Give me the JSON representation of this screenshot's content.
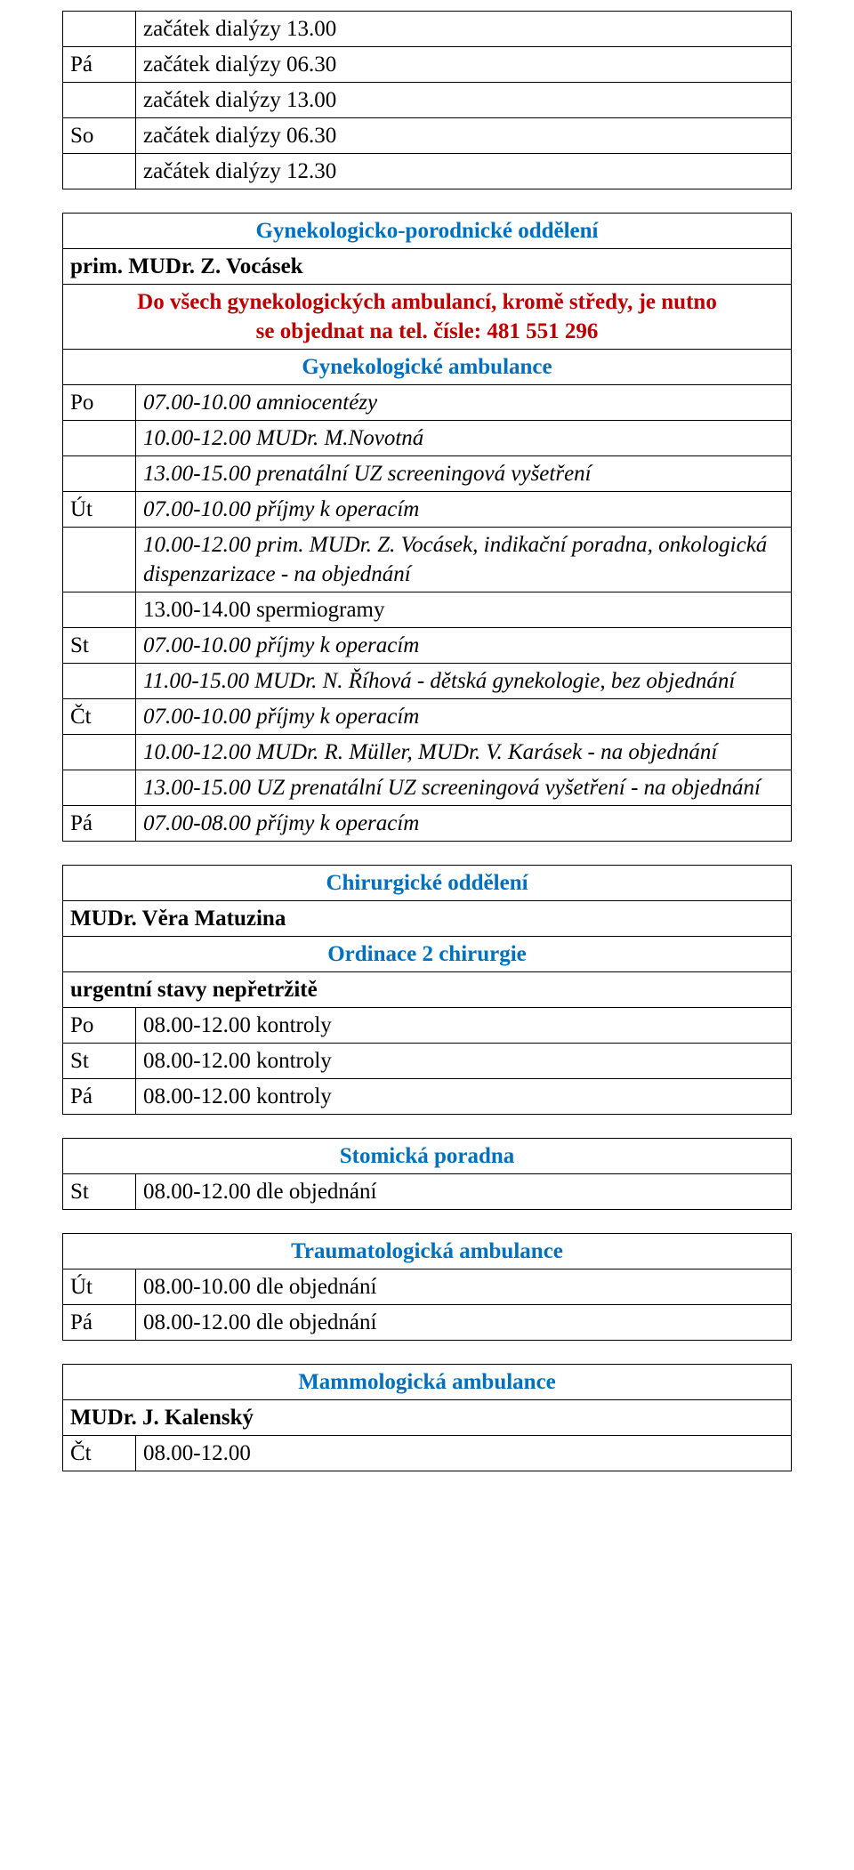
{
  "colors": {
    "heading": "#0070c0",
    "red": "#c00000",
    "text": "#000000",
    "background": "#ffffff",
    "border": "#000000"
  },
  "typography": {
    "font_family": "Times New Roman",
    "body_fontsize": 25,
    "heading_fontsize": 29
  },
  "table1": {
    "rows": [
      {
        "day": "",
        "text": "začátek dialýzy 13.00"
      },
      {
        "day": "Pá",
        "text": "začátek dialýzy 06.30"
      },
      {
        "day": "",
        "text": "začátek dialýzy 13.00"
      },
      {
        "day": "So",
        "text": "začátek dialýzy 06.30"
      },
      {
        "day": "",
        "text": "začátek dialýzy 12.30"
      }
    ]
  },
  "table2": {
    "heading": "Gynekologicko-porodnické oddělení",
    "primar": "prim. MUDr. Z. Vocásek",
    "red1": "Do všech gynekologických ambulancí, kromě středy, je nutno",
    "red2": "se objednat na tel. čísle: 481 551 296",
    "subheading": "Gynekologické ambulance",
    "rows": [
      {
        "day": "Po",
        "text": "07.00-10.00 amniocentézy",
        "italic": true
      },
      {
        "day": "",
        "text": "10.00-12.00 MUDr. M.Novotná",
        "italic": true
      },
      {
        "day": "",
        "text": "13.00-15.00 prenatální UZ screeningová vyšetření",
        "italic": true
      },
      {
        "day": "Út",
        "text": "07.00-10.00 příjmy k operacím",
        "italic": true
      },
      {
        "day": "",
        "text": "10.00-12.00 prim. MUDr. Z. Vocásek, indikační poradna, onkologická dispenzarizace - na objednání",
        "italic": true
      },
      {
        "day": "",
        "text": "13.00-14.00 spermiogramy"
      },
      {
        "day": "St",
        "text": "07.00-10.00 příjmy k operacím",
        "italic": true
      },
      {
        "day": "",
        "text": "11.00-15.00 MUDr. N. Říhová - dětská gynekologie, bez objednání",
        "italic": true
      },
      {
        "day": "Čt",
        "text": "07.00-10.00 příjmy k operacím",
        "italic": true
      },
      {
        "day": "",
        "text": "10.00-12.00 MUDr. R. Müller, MUDr. V. Karásek - na objednání",
        "italic": true
      },
      {
        "day": "",
        "text": "13.00-15.00 UZ prenatální UZ screeningová vyšetření - na objednání",
        "italic": true
      },
      {
        "day": "Pá",
        "text": "07.00-08.00  příjmy k operacím",
        "italic": true
      }
    ]
  },
  "table3": {
    "heading": "Chirurgické oddělení",
    "doctor": "MUDr. Věra Matuzina",
    "subheading": "Ordinace 2 chirurgie",
    "note": "urgentní stavy nepřetržitě",
    "rows": [
      {
        "day": "Po",
        "text": "08.00-12.00  kontroly"
      },
      {
        "day": "St",
        "text": "08.00-12.00  kontroly"
      },
      {
        "day": "Pá",
        "text": "08.00-12.00  kontroly"
      }
    ]
  },
  "table4": {
    "heading": "Stomická poradna",
    "rows": [
      {
        "day": "St",
        "text": "08.00-12.00  dle objednání"
      }
    ]
  },
  "table5": {
    "heading": "Traumatologická ambulance",
    "rows": [
      {
        "day": "Út",
        "text": "08.00-10.00  dle objednání"
      },
      {
        "day": "Pá",
        "text": "08.00-12.00  dle objednání"
      }
    ]
  },
  "table6": {
    "heading": "Mammologická  ambulance",
    "doctor": "MUDr. J. Kalenský",
    "rows": [
      {
        "day": "Čt",
        "text": "08.00-12.00"
      }
    ]
  }
}
